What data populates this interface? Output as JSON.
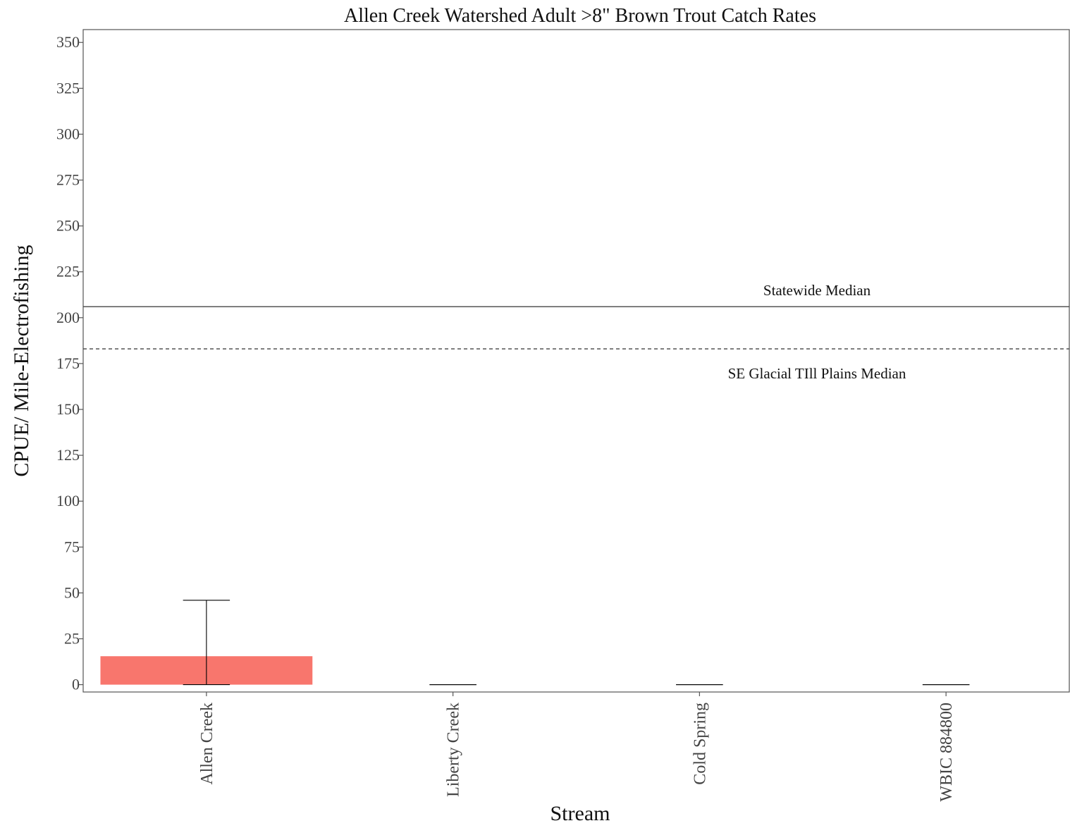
{
  "chart_data": {
    "type": "bar",
    "title": "Allen Creek Watershed Adult >8\" Brown Trout Catch Rates",
    "xlabel": "Stream",
    "ylabel": "CPUE/ Mile-Electrofishing",
    "ylim": [
      -4,
      357
    ],
    "yticks": [
      0,
      25,
      50,
      75,
      100,
      125,
      150,
      175,
      200,
      225,
      250,
      275,
      300,
      325,
      350
    ],
    "categories": [
      "Allen Creek",
      "Liberty Creek",
      "Cold Spring",
      "WBIC 884800"
    ],
    "values": [
      15.5,
      0,
      0,
      0
    ],
    "error_bars": [
      {
        "low": 0,
        "high": 46
      },
      {
        "low": 0,
        "high": 0
      },
      {
        "low": 0,
        "high": 0
      },
      {
        "low": 0,
        "high": 0
      }
    ],
    "reference_lines": [
      {
        "label": "Statewide Median",
        "value": 206,
        "style": "solid"
      },
      {
        "label": "SE Glacial TIll Plains Median",
        "value": 183,
        "style": "dashed"
      }
    ],
    "grid": false,
    "legend": "none",
    "colors": {
      "bar": "#F8766D",
      "axis": "#555555",
      "error_bar": "#000000",
      "reference_line": "#444444"
    }
  }
}
